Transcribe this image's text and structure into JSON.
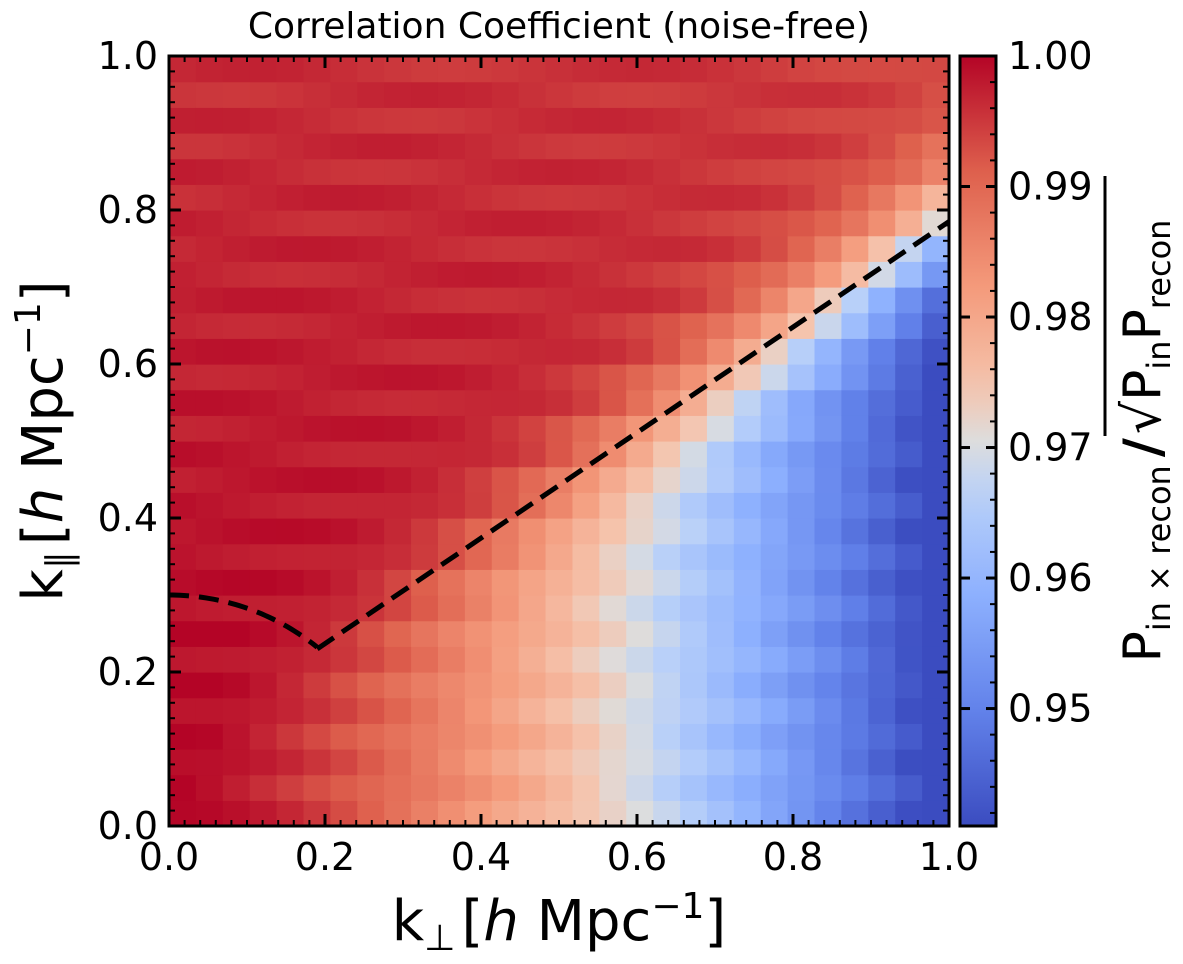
{
  "chart_data": {
    "type": "heatmap",
    "title": "Correlation Coefficient (noise-free)",
    "xlabel": {
      "main": "k",
      "sub": "⊥",
      "rest": "[",
      "h": "h",
      "unit": " Mpc",
      "sup": "−1",
      "close": "]"
    },
    "ylabel": {
      "main": "k",
      "sub": "∥",
      "rest": "[",
      "h": "h",
      "unit": " Mpc",
      "sup": "−1",
      "close": "]"
    },
    "xlim": [
      0.0,
      1.0
    ],
    "ylim": [
      0.0,
      1.0
    ],
    "xticks": [
      "0.0",
      "0.2",
      "0.4",
      "0.6",
      "0.8",
      "1.0"
    ],
    "yticks": [
      "0.0",
      "0.2",
      "0.4",
      "0.6",
      "0.8",
      "1.0"
    ],
    "grid": {
      "nx": 29,
      "ny": 30
    },
    "colormap": "coolwarm",
    "colorbar": {
      "vmin": 0.941,
      "vmax": 1.0,
      "ticks": [
        "1.00",
        "0.99",
        "0.98",
        "0.97",
        "0.96",
        "0.95"
      ],
      "tick_values": [
        1.0,
        0.99,
        0.98,
        0.97,
        0.96,
        0.95
      ],
      "label": {
        "p1": "P",
        "s1": "in × recon",
        "slash": "/",
        "sqrt": "√",
        "p2": "P",
        "s2": "in",
        "p3": "P",
        "s3": "recon"
      }
    },
    "model_description": "Correlation ≈ 1 above the dashed wedge line and decreasing toward ~0.941 at high k⊥ / low k∥",
    "overlay": {
      "style": "dashed",
      "color": "#000000",
      "arc": {
        "center": [
          0.0,
          0.0
        ],
        "radius": 0.3,
        "k_perp_end": 0.19
      },
      "wedge_line": {
        "from": [
          0.19,
          0.23
        ],
        "to": [
          1.0,
          0.785
        ]
      }
    }
  }
}
